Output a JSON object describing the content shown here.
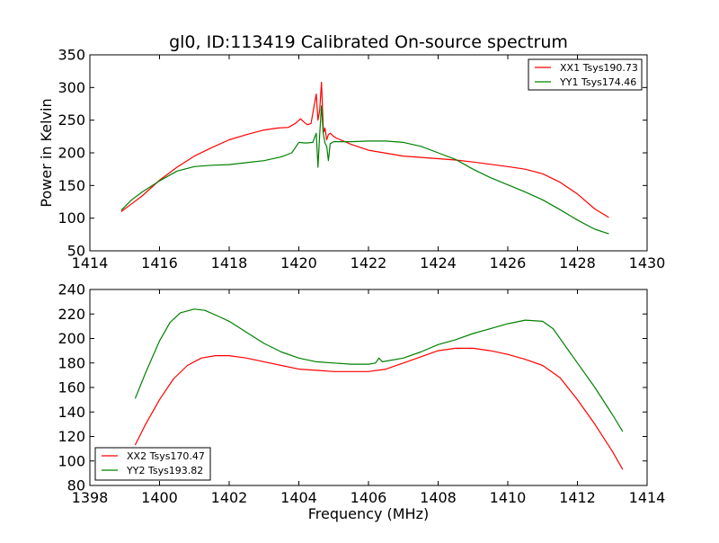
{
  "figure": {
    "title": "gl0, ID:113419 Calibrated On-source spectrum"
  },
  "chart_data": [
    {
      "type": "line",
      "title": "gl0, ID:113419 Calibrated On-source spectrum",
      "xlabel": "",
      "ylabel": "Power in Kelvin",
      "xlim": [
        1414,
        1430
      ],
      "ylim": [
        50,
        350
      ],
      "xticks": [
        1414,
        1416,
        1418,
        1420,
        1422,
        1424,
        1426,
        1428,
        1430
      ],
      "yticks": [
        50,
        100,
        150,
        200,
        250,
        300,
        350
      ],
      "grid": false,
      "legend_position": "top-right",
      "series": [
        {
          "name": "XX1 Tsys190.73",
          "color": "#ff0000",
          "x": [
            1414.9,
            1415.2,
            1415.5,
            1416.0,
            1416.5,
            1417.0,
            1417.5,
            1418.0,
            1418.5,
            1419.0,
            1419.4,
            1419.7,
            1419.9,
            1420.05,
            1420.15,
            1420.25,
            1420.35,
            1420.45,
            1420.5,
            1420.55,
            1420.6,
            1420.65,
            1420.7,
            1420.72,
            1420.75,
            1420.8,
            1420.85,
            1420.9,
            1421.0,
            1421.1,
            1421.2,
            1421.5,
            1422.0,
            1423.0,
            1424.0,
            1424.5,
            1425.0,
            1426.0,
            1426.5,
            1427.0,
            1427.5,
            1428.0,
            1428.5,
            1428.9
          ],
          "y": [
            110,
            122,
            134,
            158,
            178,
            195,
            208,
            220,
            228,
            235,
            238,
            239,
            245,
            252,
            247,
            243,
            245,
            275,
            290,
            250,
            265,
            308,
            240,
            232,
            238,
            220,
            228,
            230,
            225,
            222,
            220,
            213,
            204,
            195,
            191,
            189,
            186,
            179,
            175,
            168,
            155,
            137,
            114,
            101
          ]
        },
        {
          "name": "YY1 Tsys174.46",
          "color": "#008000",
          "x": [
            1414.9,
            1415.2,
            1415.5,
            1416.0,
            1416.5,
            1417.0,
            1417.5,
            1418.0,
            1418.5,
            1419.0,
            1419.5,
            1419.8,
            1420.0,
            1420.2,
            1420.4,
            1420.5,
            1420.55,
            1420.6,
            1420.65,
            1420.7,
            1420.75,
            1420.8,
            1420.85,
            1420.9,
            1421.0,
            1421.5,
            1422.0,
            1422.5,
            1423.0,
            1423.5,
            1424.0,
            1424.5,
            1425.0,
            1425.5,
            1426.0,
            1426.5,
            1427.0,
            1427.5,
            1428.0,
            1428.5,
            1428.9
          ],
          "y": [
            112,
            128,
            140,
            157,
            172,
            179,
            181,
            182,
            185,
            188,
            194,
            200,
            216,
            215,
            216,
            230,
            178,
            228,
            272,
            230,
            215,
            210,
            188,
            214,
            217,
            217,
            218,
            218,
            216,
            210,
            200,
            190,
            175,
            162,
            151,
            140,
            128,
            113,
            97,
            83,
            76
          ]
        }
      ]
    },
    {
      "type": "line",
      "title": "",
      "xlabel": "Frequency (MHz)",
      "ylabel": "",
      "xlim": [
        1398,
        1414
      ],
      "ylim": [
        80,
        240
      ],
      "xticks": [
        1398,
        1400,
        1402,
        1404,
        1406,
        1408,
        1410,
        1412,
        1414
      ],
      "yticks": [
        80,
        100,
        120,
        140,
        160,
        180,
        200,
        220,
        240
      ],
      "grid": false,
      "legend_position": "bottom-left",
      "series": [
        {
          "name": "XX2 Tsys170.47",
          "color": "#ff0000",
          "x": [
            1399.3,
            1399.6,
            1400.0,
            1400.4,
            1400.8,
            1401.2,
            1401.6,
            1402.0,
            1402.5,
            1403.0,
            1403.5,
            1404.0,
            1404.5,
            1405.0,
            1405.5,
            1406.0,
            1406.5,
            1407.0,
            1407.5,
            1408.0,
            1408.5,
            1409.0,
            1409.5,
            1410.0,
            1410.5,
            1411.0,
            1411.5,
            1412.0,
            1412.5,
            1413.0,
            1413.3
          ],
          "y": [
            113,
            130,
            150,
            167,
            178,
            184,
            186,
            186,
            184,
            181,
            178,
            175,
            174,
            173,
            173,
            173,
            175,
            180,
            185,
            190,
            192,
            192,
            190,
            187,
            183,
            178,
            168,
            150,
            130,
            108,
            93
          ]
        },
        {
          "name": "YY2 Tsys193.82",
          "color": "#008000",
          "x": [
            1399.3,
            1399.6,
            1400.0,
            1400.3,
            1400.6,
            1401.0,
            1401.3,
            1401.7,
            1402.0,
            1402.5,
            1403.0,
            1403.5,
            1404.0,
            1404.5,
            1405.0,
            1405.5,
            1406.0,
            1406.2,
            1406.3,
            1406.4,
            1407.0,
            1407.5,
            1408.0,
            1408.5,
            1409.0,
            1409.5,
            1410.0,
            1410.5,
            1411.0,
            1411.3,
            1411.6,
            1412.0,
            1412.5,
            1413.0,
            1413.3
          ],
          "y": [
            151,
            172,
            198,
            213,
            221,
            224,
            223,
            218,
            214,
            205,
            196,
            189,
            184,
            181,
            180,
            179,
            179,
            180,
            184,
            181,
            184,
            189,
            195,
            199,
            204,
            208,
            212,
            215,
            214,
            208,
            196,
            180,
            160,
            138,
            124
          ]
        }
      ]
    }
  ]
}
